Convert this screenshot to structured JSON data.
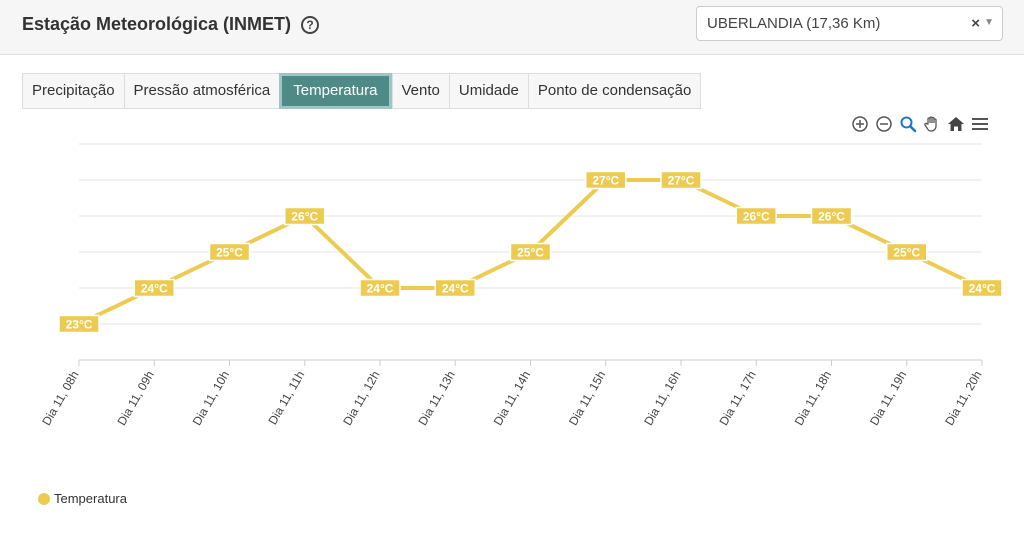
{
  "header": {
    "title": "Estação Meteorológica (INMET)",
    "station_select": {
      "value": "UBERLANDIA (17,36 Km)",
      "clear_glyph": "×"
    }
  },
  "tabs": [
    {
      "label": "Precipitação",
      "active": false
    },
    {
      "label": "Pressão atmosférica",
      "active": false
    },
    {
      "label": "Temperatura",
      "active": true
    },
    {
      "label": "Vento",
      "active": false
    },
    {
      "label": "Umidade",
      "active": false
    },
    {
      "label": "Ponto de condensação",
      "active": false
    }
  ],
  "toolbar": [
    {
      "name": "zoom-in-icon"
    },
    {
      "name": "zoom-out-icon"
    },
    {
      "name": "magnifier-icon"
    },
    {
      "name": "pan-hand-icon"
    },
    {
      "name": "home-icon"
    },
    {
      "name": "menu-icon"
    }
  ],
  "colors": {
    "series": "#eccb50",
    "tab_active": "#4e8b87",
    "icon_blue": "#1f77c4"
  },
  "chart_data": {
    "type": "line",
    "categories": [
      "Dia 11, 08h",
      "Dia 11, 09h",
      "Dia 11, 10h",
      "Dia 11, 11h",
      "Dia 11, 12h",
      "Dia 11, 13h",
      "Dia 11, 14h",
      "Dia 11, 15h",
      "Dia 11, 16h",
      "Dia 11, 17h",
      "Dia 11, 18h",
      "Dia 11, 19h",
      "Dia 11, 20h"
    ],
    "series": [
      {
        "name": "Temperatura",
        "values": [
          23,
          24,
          25,
          26,
          24,
          24,
          25,
          27,
          27,
          26,
          26,
          25,
          24
        ],
        "labels": [
          "23°C",
          "24°C",
          "25°C",
          "26°C",
          "24°C",
          "24°C",
          "25°C",
          "27°C",
          "27°C",
          "26°C",
          "26°C",
          "25°C",
          "24°C"
        ]
      }
    ],
    "ylim": [
      22,
      28
    ],
    "grid": true,
    "legend": "bottom-left"
  }
}
